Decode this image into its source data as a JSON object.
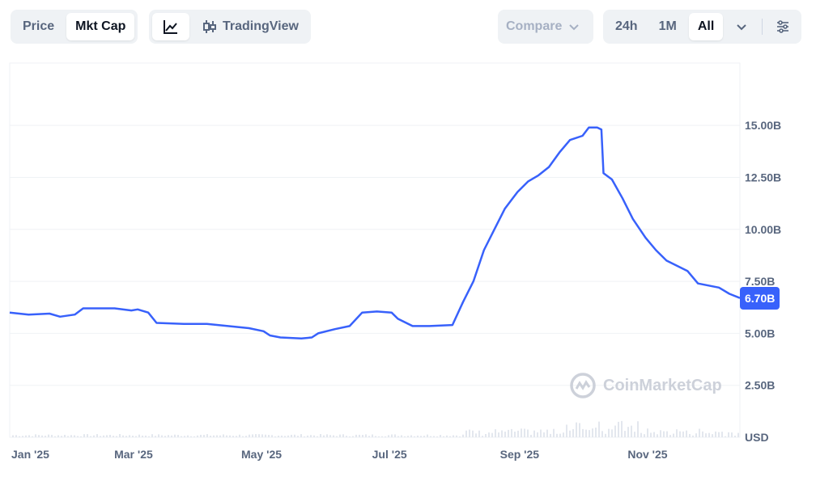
{
  "toolbar": {
    "metric_tabs": [
      {
        "label": "Price",
        "active": false
      },
      {
        "label": "Mkt Cap",
        "active": true
      }
    ],
    "chart_type": {
      "line_icon": "line-chart-icon",
      "candle_icon": "candlestick-icon",
      "tradingview_label": "TradingView"
    },
    "compare": {
      "label": "Compare",
      "icon": "chevron-down-icon"
    },
    "ranges": [
      {
        "label": "24h",
        "active": false
      },
      {
        "label": "1M",
        "active": false
      },
      {
        "label": "All",
        "active": true
      }
    ],
    "more_icon": "chevron-down-icon",
    "settings_icon": "sliders-icon"
  },
  "watermark": "CoinMarketCap",
  "current_value_label": "6.70B",
  "colors": {
    "line": "#3861fb",
    "badge": "#3861fb",
    "grid": "#eff2f5",
    "text": "#58667e"
  },
  "chart_data": {
    "type": "line",
    "title": "",
    "xlabel": "",
    "ylabel": "USD",
    "x_tick_labels": [
      "Jan '25",
      "Mar '25",
      "May '25",
      "Jul '25",
      "Sep '25",
      "Nov '25"
    ],
    "y_tick_labels": [
      "USD",
      "2.50B",
      "5.00B",
      "7.50B",
      "10.00B",
      "12.50B",
      "15.00B"
    ],
    "y_tick_values": [
      0,
      2.5,
      5,
      7.5,
      10,
      12.5,
      15
    ],
    "x_range": [
      "2025-01-01",
      "2025-12-15"
    ],
    "y_range": [
      0,
      18
    ],
    "grid": true,
    "series": [
      {
        "name": "",
        "unit": "B USD",
        "points": [
          [
            "2025-01-01",
            6.0
          ],
          [
            "2025-01-10",
            5.9
          ],
          [
            "2025-01-20",
            5.95
          ],
          [
            "2025-01-25",
            5.8
          ],
          [
            "2025-02-01",
            5.9
          ],
          [
            "2025-02-05",
            6.2
          ],
          [
            "2025-02-20",
            6.2
          ],
          [
            "2025-02-28",
            6.1
          ],
          [
            "2025-03-03",
            6.15
          ],
          [
            "2025-03-08",
            6.0
          ],
          [
            "2025-03-12",
            5.5
          ],
          [
            "2025-03-25",
            5.45
          ],
          [
            "2025-04-05",
            5.45
          ],
          [
            "2025-04-15",
            5.35
          ],
          [
            "2025-04-25",
            5.25
          ],
          [
            "2025-05-02",
            5.1
          ],
          [
            "2025-05-05",
            4.9
          ],
          [
            "2025-05-10",
            4.8
          ],
          [
            "2025-05-20",
            4.75
          ],
          [
            "2025-05-25",
            4.8
          ],
          [
            "2025-05-28",
            5.0
          ],
          [
            "2025-06-05",
            5.2
          ],
          [
            "2025-06-12",
            5.35
          ],
          [
            "2025-06-18",
            6.0
          ],
          [
            "2025-06-25",
            6.05
          ],
          [
            "2025-07-02",
            6.0
          ],
          [
            "2025-07-05",
            5.7
          ],
          [
            "2025-07-12",
            5.35
          ],
          [
            "2025-07-20",
            5.35
          ],
          [
            "2025-07-31",
            5.4
          ],
          [
            "2025-08-05",
            6.5
          ],
          [
            "2025-08-10",
            7.5
          ],
          [
            "2025-08-15",
            9.0
          ],
          [
            "2025-08-20",
            10.0
          ],
          [
            "2025-08-25",
            11.0
          ],
          [
            "2025-08-31",
            11.8
          ],
          [
            "2025-09-05",
            12.3
          ],
          [
            "2025-09-10",
            12.6
          ],
          [
            "2025-09-15",
            13.0
          ],
          [
            "2025-09-20",
            13.7
          ],
          [
            "2025-09-25",
            14.3
          ],
          [
            "2025-10-01",
            14.5
          ],
          [
            "2025-10-04",
            14.9
          ],
          [
            "2025-10-08",
            14.9
          ],
          [
            "2025-10-10",
            14.8
          ],
          [
            "2025-10-11",
            12.7
          ],
          [
            "2025-10-15",
            12.4
          ],
          [
            "2025-10-20",
            11.5
          ],
          [
            "2025-10-25",
            10.5
          ],
          [
            "2025-10-31",
            9.6
          ],
          [
            "2025-11-05",
            9.0
          ],
          [
            "2025-11-10",
            8.5
          ],
          [
            "2025-11-20",
            8.0
          ],
          [
            "2025-11-25",
            7.4
          ],
          [
            "2025-12-05",
            7.2
          ],
          [
            "2025-12-10",
            6.9
          ],
          [
            "2025-12-15",
            6.7
          ]
        ]
      }
    ]
  }
}
